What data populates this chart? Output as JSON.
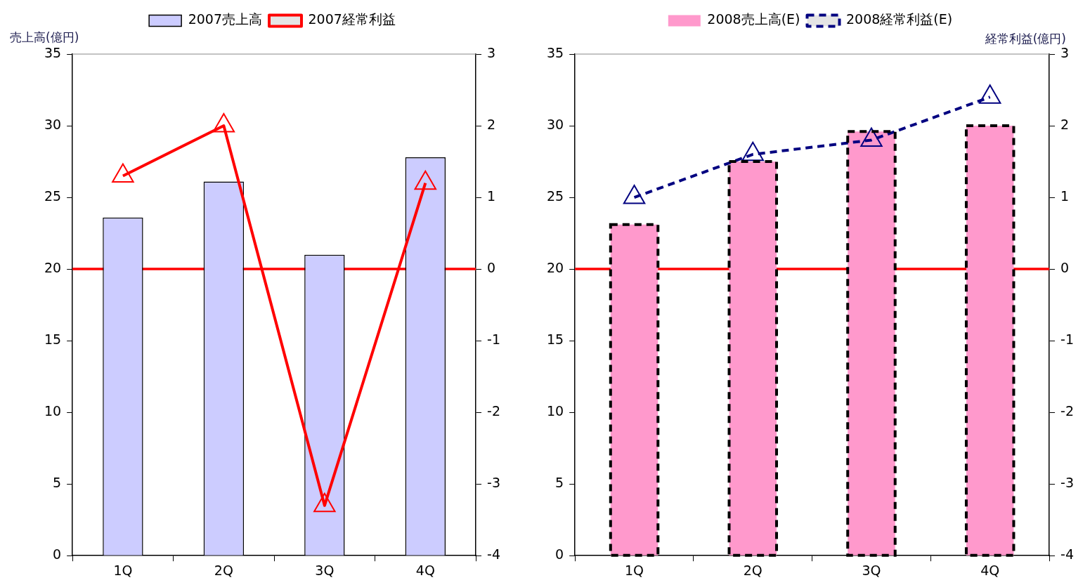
{
  "chart_data": [
    {
      "type": "bar",
      "categories": [
        "1Q",
        "2Q",
        "3Q",
        "4Q"
      ],
      "ylabel": "売上高(億円)",
      "ylim": [
        0,
        35
      ],
      "yticks": [
        0,
        5,
        10,
        15,
        20,
        25,
        30,
        35
      ],
      "y2lim": [
        -4,
        3
      ],
      "y2ticks": [
        -4,
        -3,
        -2,
        -1,
        0,
        1,
        2,
        3
      ],
      "legend": "top",
      "grid": false,
      "marker": "triangle",
      "series": [
        {
          "name": "2007売上高",
          "color": "#ccccff",
          "values": [
            23.6,
            26.1,
            21.0,
            27.8
          ]
        },
        {
          "name": "2007経常利益",
          "type": "line",
          "axis": "y2",
          "color": "#ff0000",
          "values": [
            1.3,
            2.0,
            -3.3,
            1.2
          ]
        }
      ],
      "ref_lines": [
        {
          "axis": "y2",
          "value": 0,
          "color": "#ff0000"
        }
      ]
    },
    {
      "type": "bar",
      "categories": [
        "1Q",
        "2Q",
        "3Q",
        "4Q"
      ],
      "y2label": "経常利益(億円)",
      "ylim": [
        0,
        35
      ],
      "yticks": [
        0,
        5,
        10,
        15,
        20,
        25,
        30,
        35
      ],
      "y2lim": [
        -4,
        3
      ],
      "y2ticks": [
        -4,
        -3,
        -2,
        -1,
        0,
        1,
        2,
        3
      ],
      "legend": "top",
      "grid": false,
      "marker": "triangle",
      "series": [
        {
          "name": "2008売上高(E)",
          "color": "#ff99cc",
          "line_style": "dashed",
          "values": [
            23.1,
            27.5,
            29.6,
            30.0
          ]
        },
        {
          "name": "2008経常利益(E)",
          "type": "line",
          "axis": "y2",
          "color": "#000080",
          "line_style": "dashed",
          "values": [
            1.0,
            1.6,
            1.8,
            2.4
          ]
        }
      ],
      "ref_lines": [
        {
          "axis": "y2",
          "value": 0,
          "color": "#ff0000"
        }
      ]
    }
  ]
}
